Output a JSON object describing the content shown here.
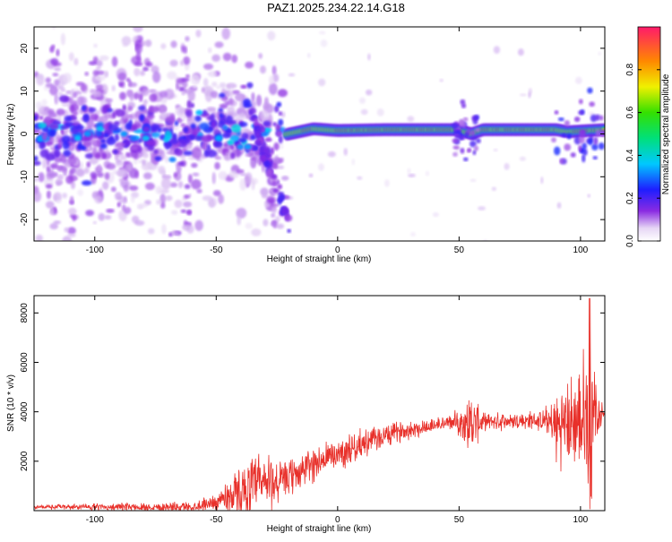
{
  "title": "PAZ1.2025.234.22.14.G18",
  "chart_data": [
    {
      "type": "heatmap",
      "xlabel": "Height of straight line (km)",
      "ylabel": "Frequency (Hz)",
      "xlim": [
        -125,
        110
      ],
      "ylim": [
        -25,
        25
      ],
      "xticks": [
        -100,
        -50,
        0,
        50,
        100
      ],
      "yticks": [
        -20,
        -10,
        0,
        10,
        20
      ],
      "colorbar": {
        "label": "Normalized spectral amplitude",
        "ticks": [
          0.0,
          0.2,
          0.4,
          0.6,
          0.8
        ],
        "tick_labels": [
          "0.0",
          "0.2",
          "0.4",
          "0.6",
          "0.8"
        ],
        "range": [
          0,
          1
        ]
      },
      "ridge": {
        "description_points": [
          {
            "x": -20,
            "y": 0
          },
          {
            "x": -10,
            "y": 1.2
          },
          {
            "x": 0,
            "y": 0.8
          },
          {
            "x": 20,
            "y": 1
          },
          {
            "x": 50,
            "y": 1
          },
          {
            "x": 55,
            "y": 0
          },
          {
            "x": 60,
            "y": 1
          },
          {
            "x": 90,
            "y": 1
          },
          {
            "x": 95,
            "y": 0.5
          },
          {
            "x": 110,
            "y": 1
          }
        ],
        "band_center_freq": 1,
        "band_half_width": 1
      }
    },
    {
      "type": "line",
      "xlabel": "Height of straight line (km)",
      "ylabel": "SNR (10 * v/v)",
      "xlim": [
        -125,
        110
      ],
      "ylim": [
        0,
        8700
      ],
      "xticks": [
        -100,
        -50,
        0,
        50,
        100
      ],
      "yticks": [
        2000,
        4000,
        6000,
        8000
      ],
      "color": "#e8302a",
      "envelope": [
        {
          "x": -125,
          "base": 150,
          "amp": 100
        },
        {
          "x": -60,
          "base": 150,
          "amp": 250
        },
        {
          "x": -50,
          "base": 350,
          "amp": 400
        },
        {
          "x": -45,
          "base": 600,
          "amp": 900
        },
        {
          "x": -30,
          "base": 1100,
          "amp": 1800
        },
        {
          "x": -22,
          "base": 1200,
          "amp": 900
        },
        {
          "x": -10,
          "base": 1900,
          "amp": 900
        },
        {
          "x": 0,
          "base": 2300,
          "amp": 800
        },
        {
          "x": 10,
          "base": 2700,
          "amp": 700
        },
        {
          "x": 25,
          "base": 3200,
          "amp": 500
        },
        {
          "x": 45,
          "base": 3550,
          "amp": 350
        },
        {
          "x": 50,
          "base": 3600,
          "amp": 600
        },
        {
          "x": 55,
          "base": 3500,
          "amp": 1600
        },
        {
          "x": 60,
          "base": 3600,
          "amp": 400
        },
        {
          "x": 85,
          "base": 3650,
          "amp": 500
        },
        {
          "x": 90,
          "base": 3400,
          "amp": 1800
        },
        {
          "x": 100,
          "base": 3600,
          "amp": 2600
        },
        {
          "x": 104,
          "base": 3800,
          "amp": 4800
        },
        {
          "x": 107,
          "base": 3900,
          "amp": 900
        },
        {
          "x": 110,
          "base": 4000,
          "amp": 300
        }
      ]
    }
  ]
}
